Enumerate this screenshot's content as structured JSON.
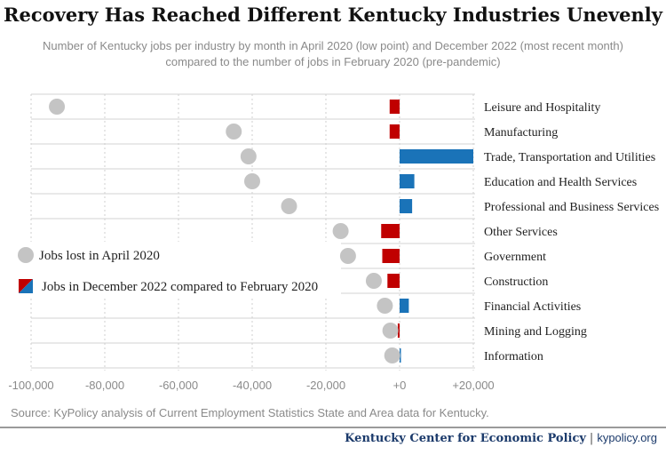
{
  "chart_data": {
    "type": "bar",
    "title": "Recovery Has Reached Different Kentucky Industries Unevenly",
    "subtitle": "Number of Kentucky jobs per industry by month in April 2020 (low point) and December 2022 (most recent month) compared to the number of jobs in February 2020 (pre-pandemic)",
    "categories": [
      "Leisure and Hospitality",
      "Manufacturing",
      "Trade, Transportation and Utilities",
      "Education and Health Services",
      "Professional and Business Services",
      "Other Services",
      "Government",
      "Construction",
      "Financial Activities",
      "Mining and Logging",
      "Information"
    ],
    "series": [
      {
        "name": "Jobs lost in April 2020",
        "mark": "dot",
        "values": [
          -93000,
          -45000,
          -41000,
          -40000,
          -30000,
          -16000,
          -14000,
          -7000,
          -4000,
          -2500,
          -2000
        ]
      },
      {
        "name": "Jobs in December 2022 compared to February 2020",
        "mark": "bar",
        "values": [
          -2700,
          -2700,
          20000,
          4000,
          3400,
          -5000,
          -4700,
          -3300,
          2500,
          -500,
          300
        ]
      }
    ],
    "xlim": [
      -100000,
      20000
    ],
    "xticks": [
      -100000,
      -80000,
      -60000,
      -40000,
      -20000,
      0,
      20000
    ],
    "xtick_labels": [
      "-100,000",
      "-80,000",
      "-60,000",
      "-40,000",
      "-20,000",
      "+0",
      "+20,000"
    ],
    "grid": true,
    "legend_position": "left-middle",
    "colors": {
      "dot": "#c4c4c4",
      "positive": "#1a73b8",
      "negative": "#c00000",
      "gridline": "#d3d3d3"
    }
  },
  "source": "Source: KyPolicy analysis of Current Employment Statistics State and Area data for Kentucky.",
  "footer": {
    "org": "Kentucky Center for Economic Policy",
    "separator": "|",
    "url": "kypolicy.org"
  }
}
